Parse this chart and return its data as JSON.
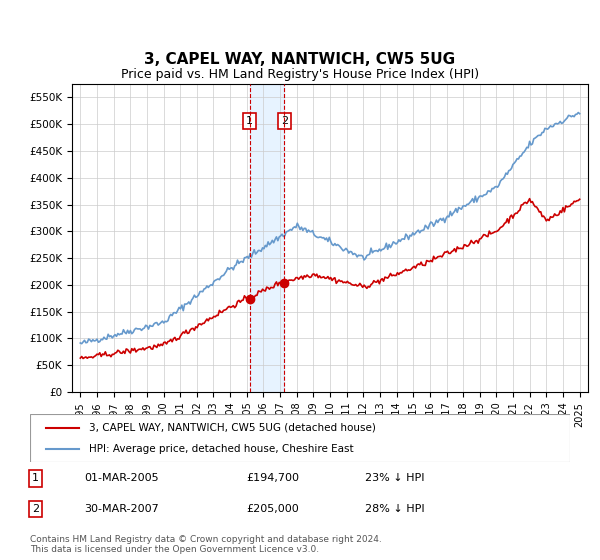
{
  "title": "3, CAPEL WAY, NANTWICH, CW5 5UG",
  "subtitle": "Price paid vs. HM Land Registry's House Price Index (HPI)",
  "legend_line1": "3, CAPEL WAY, NANTWICH, CW5 5UG (detached house)",
  "legend_line2": "HPI: Average price, detached house, Cheshire East",
  "footer": "Contains HM Land Registry data © Crown copyright and database right 2024.\nThis data is licensed under the Open Government Licence v3.0.",
  "transaction1_label": "1",
  "transaction1_date": "01-MAR-2005",
  "transaction1_price": "£194,700",
  "transaction1_hpi": "23% ↓ HPI",
  "transaction2_label": "2",
  "transaction2_date": "30-MAR-2007",
  "transaction2_price": "£205,000",
  "transaction2_hpi": "28% ↓ HPI",
  "hpi_color": "#6699cc",
  "price_color": "#cc0000",
  "shading_color": "#ddeeff",
  "marker1_x": 2005.17,
  "marker2_x": 2007.25,
  "ylim_min": 0,
  "ylim_max": 575000,
  "xlim_min": 1994.5,
  "xlim_max": 2025.5,
  "yticks": [
    0,
    50000,
    100000,
    150000,
    200000,
    250000,
    300000,
    350000,
    400000,
    450000,
    500000,
    550000
  ],
  "ytick_labels": [
    "£0",
    "£50K",
    "£100K",
    "£150K",
    "£200K",
    "£250K",
    "£300K",
    "£350K",
    "£400K",
    "£450K",
    "£500K",
    "£550K"
  ],
  "xticks": [
    1995,
    1996,
    1997,
    1998,
    1999,
    2000,
    2001,
    2002,
    2003,
    2004,
    2005,
    2006,
    2007,
    2008,
    2009,
    2010,
    2011,
    2012,
    2013,
    2014,
    2015,
    2016,
    2017,
    2018,
    2019,
    2020,
    2021,
    2022,
    2023,
    2024,
    2025
  ]
}
